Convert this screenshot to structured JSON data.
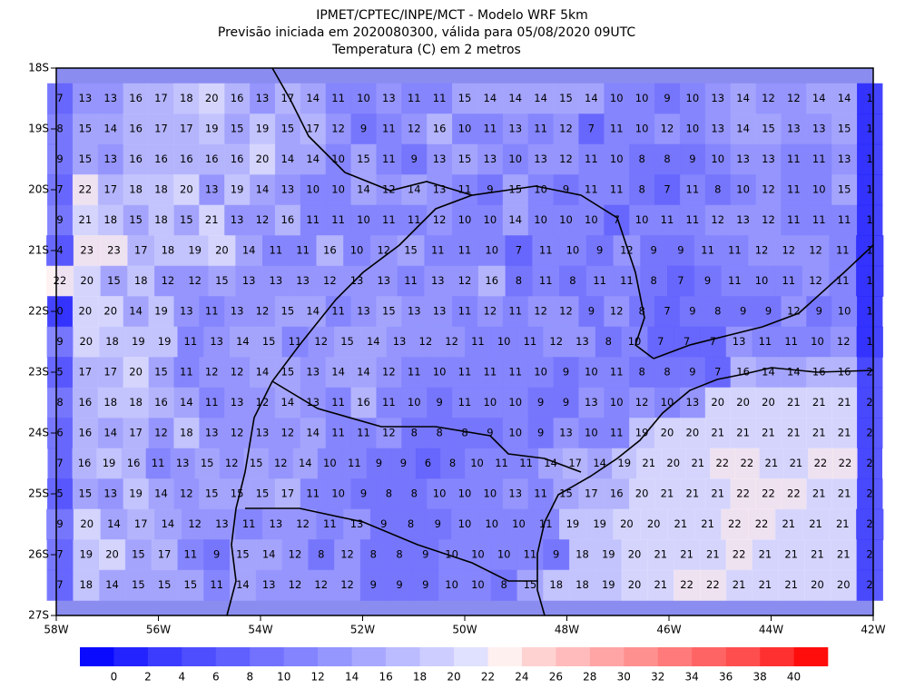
{
  "title": [
    "IPMET/CPTEC/INPE/MCT - Modelo WRF 5km",
    "Previsão iniciada em 2020080300, válida para 05/08/2020 09UTC",
    "Temperatura (C) em 2 metros"
  ],
  "lat_labels": [
    "18S",
    "19S",
    "20S",
    "21S",
    "22S",
    "23S",
    "24S",
    "25S",
    "26S",
    "27S"
  ],
  "lon_labels": [
    "58W",
    "56W",
    "54W",
    "52W",
    "50W",
    "48W",
    "46W",
    "44W",
    "42W"
  ],
  "colorbar": {
    "labels": [
      0,
      2,
      4,
      6,
      8,
      10,
      12,
      14,
      16,
      18,
      20,
      22,
      24,
      26,
      28,
      30,
      32,
      34,
      36,
      38,
      40
    ],
    "colors": [
      "#0a0aff",
      "#2323ff",
      "#3c3cff",
      "#4e4eff",
      "#6060ff",
      "#7272ff",
      "#8484ff",
      "#9696ff",
      "#a8a8ff",
      "#bbbbff",
      "#cdcdff",
      "#e0e0ff",
      "#fff0f0",
      "#ffd2d2",
      "#ffbbbb",
      "#ffa5a5",
      "#ff9090",
      "#ff7a7a",
      "#ff6464",
      "#ff4e4e",
      "#ff3030",
      "#ff0d0d"
    ]
  },
  "grid": {
    "rows": [
      [
        7,
        13,
        13,
        16,
        17,
        18,
        20,
        16,
        13,
        17,
        14,
        11,
        10,
        13,
        11,
        11,
        15,
        14,
        14,
        14,
        15,
        14,
        10,
        10,
        9,
        10,
        13,
        14,
        12,
        12,
        14,
        14,
        1
      ],
      [
        8,
        15,
        14,
        16,
        17,
        17,
        19,
        15,
        19,
        15,
        17,
        12,
        9,
        11,
        12,
        16,
        10,
        11,
        13,
        11,
        12,
        7,
        11,
        10,
        12,
        10,
        13,
        14,
        15,
        13,
        13,
        15,
        1
      ],
      [
        9,
        15,
        13,
        16,
        16,
        16,
        16,
        16,
        20,
        14,
        14,
        10,
        15,
        11,
        9,
        13,
        15,
        13,
        10,
        13,
        12,
        11,
        10,
        8,
        8,
        9,
        10,
        13,
        13,
        11,
        11,
        13,
        1
      ],
      [
        7,
        22,
        17,
        18,
        18,
        20,
        13,
        19,
        14,
        13,
        10,
        10,
        14,
        12,
        14,
        13,
        11,
        9,
        15,
        10,
        9,
        11,
        11,
        8,
        7,
        11,
        8,
        10,
        12,
        11,
        10,
        15,
        1
      ],
      [
        9,
        21,
        18,
        15,
        18,
        15,
        21,
        13,
        12,
        16,
        11,
        11,
        10,
        11,
        11,
        12,
        10,
        10,
        14,
        10,
        10,
        10,
        7,
        10,
        11,
        11,
        12,
        13,
        12,
        11,
        11,
        11,
        1
      ],
      [
        4,
        23,
        23,
        17,
        18,
        19,
        20,
        14,
        11,
        11,
        16,
        10,
        12,
        15,
        11,
        11,
        10,
        7,
        11,
        10,
        9,
        12,
        9,
        9,
        11,
        11,
        12,
        12,
        12,
        11,
        1
      ],
      [
        22,
        20,
        15,
        18,
        12,
        12,
        15,
        13,
        13,
        13,
        12,
        13,
        13,
        11,
        13,
        12,
        16,
        8,
        11,
        8,
        11,
        11,
        8,
        7,
        9,
        11,
        10,
        11,
        12,
        11,
        1
      ],
      [
        0,
        20,
        20,
        14,
        19,
        13,
        11,
        13,
        12,
        15,
        14,
        11,
        13,
        15,
        13,
        13,
        11,
        12,
        11,
        12,
        12,
        9,
        12,
        8,
        7,
        9,
        8,
        9,
        9,
        12,
        9,
        10,
        1
      ],
      [
        9,
        20,
        18,
        19,
        19,
        11,
        13,
        14,
        15,
        11,
        12,
        15,
        14,
        13,
        12,
        12,
        11,
        10,
        11,
        12,
        13,
        8,
        10,
        7,
        7,
        7,
        13,
        11,
        11,
        10,
        12,
        1
      ],
      [
        5,
        17,
        17,
        20,
        15,
        11,
        12,
        12,
        14,
        15,
        13,
        14,
        14,
        12,
        11,
        10,
        11,
        11,
        11,
        10,
        9,
        10,
        11,
        8,
        8,
        9,
        7,
        16,
        14,
        14,
        16,
        16,
        2
      ],
      [
        8,
        16,
        18,
        18,
        16,
        14,
        11,
        13,
        12,
        14,
        13,
        11,
        16,
        11,
        10,
        9,
        11,
        10,
        10,
        9,
        9,
        13,
        10,
        12,
        10,
        13,
        20,
        20,
        20,
        21,
        21,
        21,
        2
      ],
      [
        6,
        16,
        14,
        17,
        12,
        18,
        13,
        12,
        13,
        12,
        14,
        11,
        11,
        12,
        8,
        8,
        8,
        9,
        10,
        9,
        13,
        10,
        11,
        19,
        20,
        20,
        21,
        21,
        21,
        21,
        21,
        21,
        2
      ],
      [
        7,
        16,
        19,
        16,
        11,
        13,
        15,
        12,
        15,
        12,
        14,
        10,
        11,
        9,
        9,
        6,
        8,
        10,
        11,
        11,
        14,
        17,
        14,
        19,
        21,
        20,
        21,
        22,
        22,
        21,
        21,
        22,
        22,
        2
      ],
      [
        5,
        15,
        13,
        19,
        14,
        12,
        15,
        15,
        15,
        17,
        11,
        10,
        9,
        8,
        8,
        10,
        10,
        10,
        13,
        11,
        15,
        17,
        16,
        20,
        21,
        21,
        21,
        22,
        22,
        22,
        21,
        21,
        2
      ],
      [
        9,
        20,
        14,
        17,
        14,
        12,
        13,
        11,
        13,
        12,
        11,
        13,
        9,
        8,
        9,
        10,
        10,
        10,
        11,
        19,
        19,
        20,
        20,
        21,
        21,
        22,
        22,
        21,
        21,
        21,
        2
      ],
      [
        7,
        19,
        20,
        15,
        17,
        11,
        9,
        15,
        14,
        12,
        8,
        12,
        8,
        8,
        9,
        10,
        10,
        10,
        11,
        9,
        18,
        19,
        20,
        21,
        21,
        21,
        22,
        21,
        21,
        21,
        21,
        2
      ],
      [
        7,
        18,
        14,
        15,
        15,
        15,
        11,
        14,
        13,
        12,
        12,
        12,
        9,
        9,
        9,
        10,
        10,
        8,
        15,
        18,
        18,
        19,
        20,
        21,
        22,
        22,
        21,
        21,
        21,
        20,
        20,
        2
      ]
    ]
  }
}
